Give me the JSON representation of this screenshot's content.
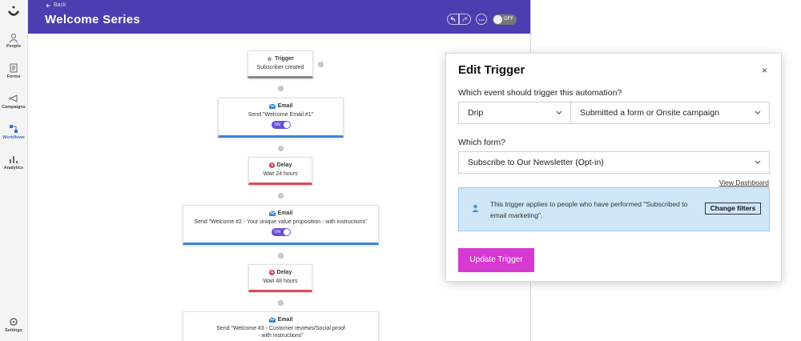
{
  "sidebar": {
    "items": [
      "People",
      "Forms",
      "Campaigns",
      "Workflows",
      "Analytics"
    ],
    "settings": "Settings"
  },
  "header": {
    "back": "Back",
    "title": "Welcome Series",
    "toggle": "OFF"
  },
  "workflow": {
    "nodes": [
      {
        "title": "Trigger",
        "text": "Subscriber created"
      },
      {
        "title": "Email",
        "text": "Send \"Welcome Email #1\"",
        "toggle": "ON"
      },
      {
        "title": "Delay",
        "text": "Wait 24 hours"
      },
      {
        "title": "Email",
        "text": "Send \"Welcome #2 - Your unique value proposition - with instructions\"",
        "toggle": "ON"
      },
      {
        "title": "Delay",
        "text": "Wait 48 hours"
      },
      {
        "title": "Email",
        "text": "Send \"Welcome #3 - Customer reviews/Social proof - with instructions\""
      }
    ]
  },
  "modal": {
    "title": "Edit Trigger",
    "close": "×",
    "event_label": "Which event should trigger this automation?",
    "event_source": "Drip",
    "event_type": "Submitted a form or Onsite campaign",
    "form_label": "Which form?",
    "form": "Subscribe to Our Newsletter (Opt-in)",
    "view_dashboard": "View Dashboard",
    "info": "This trigger applies to people who have performed \"Subscribed to email marketing\".",
    "change_filters": "Change filters",
    "submit": "Update Trigger"
  }
}
